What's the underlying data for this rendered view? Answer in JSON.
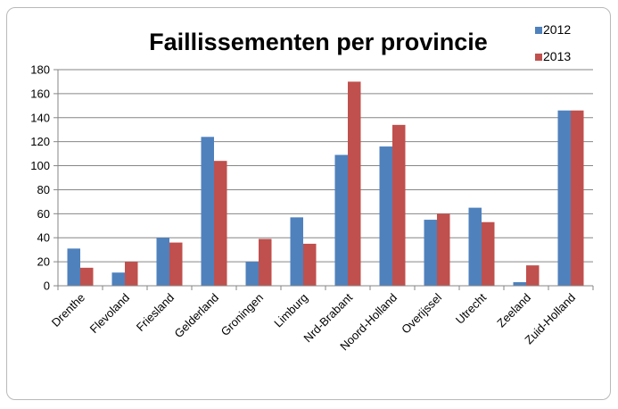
{
  "chart_data": {
    "type": "bar",
    "title": "Faillissementen per provincie",
    "xlabel": "",
    "ylabel": "",
    "ylim": [
      0,
      180
    ],
    "yticks": [
      "0",
      "20",
      "40",
      "60",
      "80",
      "100",
      "120",
      "140",
      "160",
      "180"
    ],
    "grid": true,
    "legend_position": "top-right",
    "categories": [
      "Drenthe",
      "Flevoland",
      "Friesland",
      "Gelderland",
      "Groningen",
      "Limburg",
      "Nrd-Brabant",
      "Noord-Holland",
      "Overijssel",
      "Utrecht",
      "Zeeland",
      "Zuid-Holland"
    ],
    "series": [
      {
        "name": "2012",
        "color": "#4f81bd",
        "values": [
          31,
          11,
          40,
          124,
          20,
          57,
          109,
          116,
          55,
          65,
          3,
          146
        ]
      },
      {
        "name": "2013",
        "color": "#c0504d",
        "values": [
          15,
          20,
          36,
          104,
          39,
          35,
          170,
          134,
          60,
          53,
          17,
          146
        ]
      }
    ]
  }
}
